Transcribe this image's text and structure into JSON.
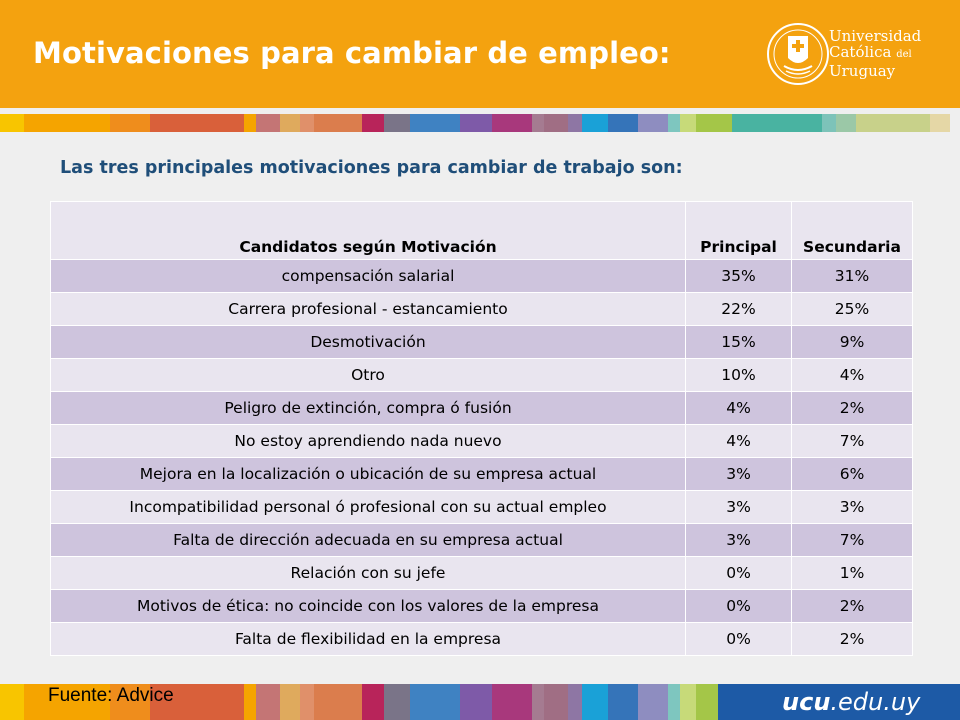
{
  "header": {
    "title": "Motivaciones para cambiar de empleo:",
    "logo": {
      "line1": "Universidad",
      "line2a": "Católica",
      "line2b": "del",
      "line3": "Uruguay",
      "icon": "ucu-seal-icon"
    }
  },
  "subtitle": "Las tres principales motivaciones para cambiar de trabajo son:",
  "table": {
    "headers": [
      "Candidatos según Motivación",
      "Principal",
      "Secundaria"
    ],
    "rows": [
      [
        "compensación salarial",
        "35%",
        "31%"
      ],
      [
        "Carrera profesional - estancamiento",
        "22%",
        "25%"
      ],
      [
        "Desmotivación",
        "15%",
        "9%"
      ],
      [
        "Otro",
        "10%",
        "4%"
      ],
      [
        "Peligro de extinción, compra ó fusión",
        "4%",
        "2%"
      ],
      [
        "No estoy aprendiendo nada nuevo",
        "4%",
        "7%"
      ],
      [
        "Mejora en la localización o ubicación de su empresa actual",
        "3%",
        "6%"
      ],
      [
        "Incompatibilidad personal ó profesional con su actual empleo",
        "3%",
        "3%"
      ],
      [
        "Falta de dirección adecuada en su empresa actual",
        "3%",
        "7%"
      ],
      [
        "Relación con su jefe",
        "0%",
        "1%"
      ],
      [
        "Motivos de ética:  no coincide con los valores de la empresa",
        "0%",
        "2%"
      ],
      [
        "Falta de flexibilidad en la empresa",
        "0%",
        "2%"
      ]
    ]
  },
  "footer": {
    "source": "Fuente:  Advice",
    "url_bold": "ucu",
    "url_rest": ".edu.uy"
  },
  "colors": {
    "header_orange": "#f4a20f",
    "subtitle_blue": "#1f4e79",
    "row_dark": "#cec4dd",
    "row_light": "#e9e5ef",
    "footer_blue": "#1d5aa6"
  }
}
